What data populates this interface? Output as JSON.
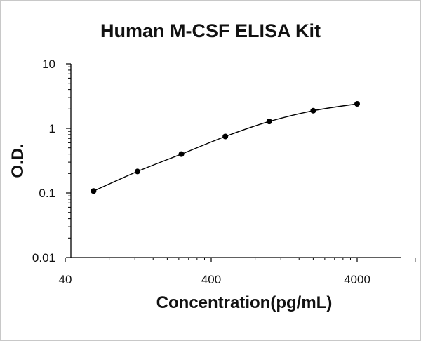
{
  "chart_data": {
    "type": "scatter",
    "title": "Human M-CSF ELISA Kit",
    "xlabel": "Concentration(pg/mL)",
    "ylabel": "O.D.",
    "x_scale": "log",
    "y_scale": "log",
    "xlim": [
      40,
      10000
    ],
    "ylim": [
      0.01,
      10
    ],
    "x_ticks": [
      "40",
      "400",
      "4000"
    ],
    "y_ticks": [
      "0.01",
      "0.1",
      "1",
      "10"
    ],
    "grid": false,
    "legend": "none",
    "series": [
      {
        "x": [
          62.5,
          125,
          250,
          500,
          1000,
          2000,
          4000
        ],
        "y": [
          0.107,
          0.215,
          0.4,
          0.75,
          1.28,
          1.88,
          2.4
        ]
      }
    ],
    "colors": {
      "line": "#000000",
      "marker": "#000000",
      "axis": "#000000"
    }
  }
}
